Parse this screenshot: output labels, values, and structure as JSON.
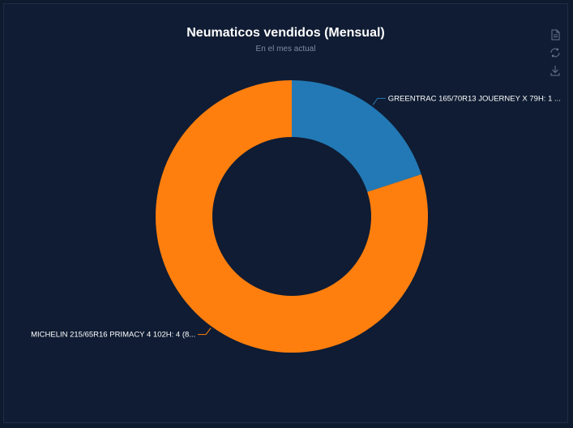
{
  "title": "Neumaticos vendidos (Mensual)",
  "subtitle": "En el mes actual",
  "toolbar": {
    "icons": [
      "document-icon",
      "refresh-icon",
      "download-icon"
    ]
  },
  "colors": {
    "background": "#0f1c33",
    "hole": "#0f1c33",
    "series": [
      "#2279b5",
      "#ff7f0e"
    ]
  },
  "chart_data": {
    "type": "pie",
    "donut": true,
    "slices": [
      {
        "label": "GREENTRAC 165/70R13 JOUERNEY X 79H: 1 ...",
        "value": 1
      },
      {
        "label": "MICHELIN 215/65R16 PRIMACY 4 102H: 4 (8...",
        "value": 4
      }
    ]
  }
}
